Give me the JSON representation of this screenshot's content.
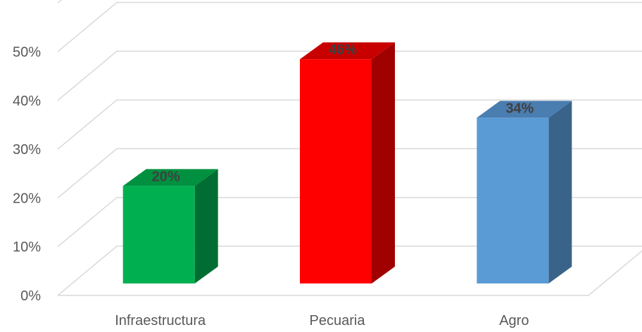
{
  "chart_data": {
    "type": "bar",
    "style": "3d-column",
    "categories": [
      "Infraestructura",
      "Pecuaria",
      "Agro"
    ],
    "values": [
      20,
      46,
      34
    ],
    "data_labels": [
      "20%",
      "46%",
      "34%"
    ],
    "ytick_labels": [
      "0%",
      "10%",
      "20%",
      "30%",
      "40%",
      "50%"
    ],
    "ylim": [
      0,
      60
    ],
    "grid": true,
    "legend": "none",
    "colors": [
      {
        "front": "#00b050",
        "side": "#006e32",
        "top": "#00903f"
      },
      {
        "front": "#ff0000",
        "side": "#a00000",
        "top": "#c80000"
      },
      {
        "front": "#5b9bd5",
        "side": "#3a6389",
        "top": "#4a7db0"
      }
    ]
  }
}
